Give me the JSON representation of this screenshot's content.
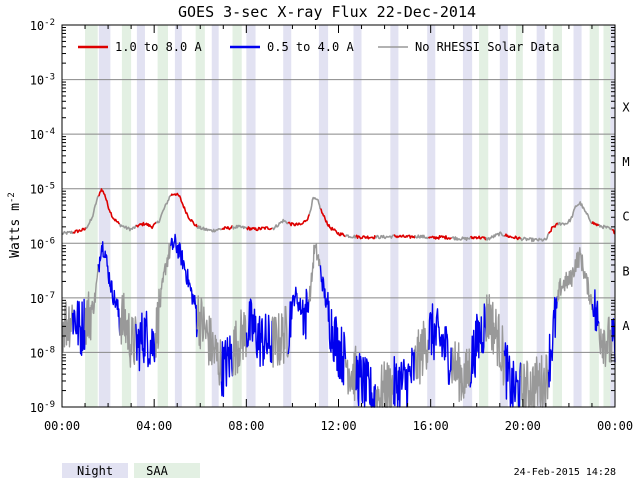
{
  "chart_data": {
    "type": "line",
    "title": "GOES 3-sec X-ray Flux   22-Dec-2014",
    "ylabel": "Watts m",
    "ylabel_sup": "-2",
    "yscale": "log",
    "ylim": [
      1e-09,
      0.01
    ],
    "xlim": [
      0,
      24
    ],
    "x_unit": "hours UT",
    "grid": "horizontal",
    "legend_position": "top",
    "y_ticks": [
      {
        "value": 1e-09,
        "base": "10",
        "exp": "-9"
      },
      {
        "value": 1e-08,
        "base": "10",
        "exp": "-8"
      },
      {
        "value": 1e-07,
        "base": "10",
        "exp": "-7"
      },
      {
        "value": 1e-06,
        "base": "10",
        "exp": "-6"
      },
      {
        "value": 1e-05,
        "base": "10",
        "exp": "-5"
      },
      {
        "value": 0.0001,
        "base": "10",
        "exp": "-4"
      },
      {
        "value": 0.001,
        "base": "10",
        "exp": "-3"
      },
      {
        "value": 0.01,
        "base": "10",
        "exp": "-2"
      }
    ],
    "x_ticks": [
      {
        "value": 0,
        "label": "00:00"
      },
      {
        "value": 4,
        "label": "04:00"
      },
      {
        "value": 8,
        "label": "08:00"
      },
      {
        "value": 12,
        "label": "12:00"
      },
      {
        "value": 16,
        "label": "16:00"
      },
      {
        "value": 20,
        "label": "20:00"
      },
      {
        "value": 24,
        "label": "00:00"
      }
    ],
    "class_labels": [
      {
        "label": "X",
        "value": 0.0001
      },
      {
        "label": "M",
        "value": 1e-05
      },
      {
        "label": "C",
        "value": 1e-06
      },
      {
        "label": "B",
        "value": 1e-07
      },
      {
        "label": "A",
        "value": 1e-08
      }
    ],
    "legend": [
      {
        "label": "1.0 to 8.0 A",
        "color": "#dd0000"
      },
      {
        "label": "0.5 to 4.0 A",
        "color": "#0000ee"
      },
      {
        "label": "No RHESSI Solar Data",
        "color": "#999999"
      }
    ],
    "shade_legend": [
      {
        "label": "Night",
        "color": "#e2e2f2"
      },
      {
        "label": "SAA",
        "color": "#e3f0e3"
      }
    ],
    "night_intervals": [
      [
        1.6,
        2.1
      ],
      [
        3.25,
        3.6
      ],
      [
        4.9,
        5.2
      ],
      [
        6.5,
        6.8
      ],
      [
        8.0,
        8.4
      ],
      [
        9.6,
        9.95
      ],
      [
        11.15,
        11.55
      ],
      [
        12.65,
        13.0
      ],
      [
        14.25,
        14.6
      ],
      [
        15.85,
        16.2
      ],
      [
        17.4,
        17.8
      ],
      [
        19.0,
        19.35
      ],
      [
        20.6,
        20.95
      ],
      [
        22.2,
        22.55
      ],
      [
        23.8,
        24.0
      ]
    ],
    "saa_intervals": [
      [
        1.0,
        1.55
      ],
      [
        2.6,
        3.0
      ],
      [
        4.15,
        4.6
      ],
      [
        5.8,
        6.2
      ],
      [
        7.4,
        7.8
      ],
      [
        18.1,
        18.5
      ],
      [
        19.7,
        20.0
      ],
      [
        21.3,
        21.7
      ],
      [
        22.9,
        23.3
      ],
      [
        23.5,
        23.8
      ]
    ],
    "no_rhessi_intervals": [
      [
        0,
        0.45
      ],
      [
        1.0,
        1.55
      ],
      [
        2.5,
        3.2
      ],
      [
        4.05,
        4.7
      ],
      [
        5.85,
        6.9
      ],
      [
        7.4,
        8.0
      ],
      [
        9.1,
        9.8
      ],
      [
        10.7,
        11.2
      ],
      [
        12.3,
        12.75
      ],
      [
        13.6,
        14.4
      ],
      [
        15.3,
        15.9
      ],
      [
        16.9,
        17.7
      ],
      [
        18.4,
        19.2
      ],
      [
        19.9,
        21.1
      ],
      [
        21.5,
        23.0
      ],
      [
        23.3,
        23.85
      ]
    ],
    "series": [
      {
        "name": "1.0 to 8.0 A",
        "color": "#dd0000",
        "x": [
          0,
          0.5,
          1.0,
          1.3,
          1.5,
          1.7,
          1.85,
          2.0,
          2.2,
          2.5,
          2.8,
          3.0,
          3.3,
          3.6,
          3.9,
          4.2,
          4.4,
          4.7,
          4.9,
          5.1,
          5.3,
          5.5,
          5.8,
          6.0,
          6.2,
          6.5,
          6.8,
          7.2,
          7.6,
          8.0,
          8.4,
          8.8,
          9.2,
          9.6,
          10.0,
          10.4,
          10.7,
          10.9,
          11.1,
          11.3,
          11.6,
          12.0,
          12.5,
          13.0,
          13.5,
          14.0,
          14.5,
          15.0,
          15.5,
          16.0,
          16.5,
          17.0,
          17.5,
          18.0,
          18.5,
          19.0,
          19.5,
          20.0,
          20.5,
          21.0,
          21.3,
          21.6,
          21.9,
          22.1,
          22.3,
          22.5,
          22.7,
          23.0,
          23.3,
          23.7,
          24.0
        ],
        "y": [
          1.5e-06,
          1.6e-06,
          1.8e-06,
          2.8e-06,
          6e-06,
          9.8e-06,
          8e-06,
          4.8e-06,
          3e-06,
          2.2e-06,
          1.9e-06,
          1.8e-06,
          2.1e-06,
          2.3e-06,
          2e-06,
          2.5e-06,
          4e-06,
          7.5e-06,
          8.2e-06,
          7.2e-06,
          4.5e-06,
          3e-06,
          2.1e-06,
          1.9e-06,
          1.8e-06,
          1.7e-06,
          1.8e-06,
          1.9e-06,
          2e-06,
          1.9e-06,
          1.8e-06,
          1.9e-06,
          1.9e-06,
          2.6e-06,
          2.2e-06,
          2.2e-06,
          3e-06,
          6.6e-06,
          6e-06,
          3.5e-06,
          2e-06,
          1.5e-06,
          1.35e-06,
          1.3e-06,
          1.3e-06,
          1.3e-06,
          1.35e-06,
          1.3e-06,
          1.35e-06,
          1.25e-06,
          1.3e-06,
          1.25e-06,
          1.2e-06,
          1.3e-06,
          1.2e-06,
          1.5e-06,
          1.3e-06,
          1.2e-06,
          1.15e-06,
          1.15e-06,
          2e-06,
          2.3e-06,
          2.3e-06,
          2.8e-06,
          4.8e-06,
          5.5e-06,
          3.8e-06,
          2.4e-06,
          2.1e-06,
          1.9e-06,
          1.6e-06
        ]
      },
      {
        "name": "0.5 to 4.0 A",
        "color": "#0000ee",
        "x": [
          0,
          0.3,
          0.5,
          0.8,
          1.0,
          1.2,
          1.4,
          1.55,
          1.7,
          1.85,
          2.0,
          2.2,
          2.5,
          2.8,
          3.0,
          3.3,
          3.6,
          3.9,
          4.1,
          4.3,
          4.5,
          4.7,
          4.9,
          5.1,
          5.3,
          5.6,
          5.9,
          6.2,
          6.6,
          7.0,
          7.4,
          7.8,
          8.2,
          8.6,
          9.0,
          9.4,
          9.8,
          10.1,
          10.4,
          10.6,
          10.8,
          10.95,
          11.1,
          11.3,
          11.6,
          12.0,
          12.5,
          13.0,
          13.5,
          14.0,
          14.5,
          15.0,
          15.5,
          16.0,
          16.5,
          17.0,
          17.5,
          18.0,
          18.5,
          19.0,
          19.5,
          20.0,
          20.5,
          21.0,
          21.3,
          21.6,
          21.9,
          22.1,
          22.3,
          22.5,
          22.7,
          23.0,
          23.3,
          23.7,
          24.0
        ],
        "y": [
          3e-08,
          4e-08,
          5e-08,
          2.5e-08,
          4e-08,
          5e-08,
          8e-08,
          2.5e-07,
          9.5e-07,
          8e-07,
          3e-07,
          1.2e-07,
          5e-08,
          3e-08,
          1.5e-08,
          1.4e-08,
          2.2e-08,
          1.4e-08,
          2.5e-08,
          1e-07,
          4e-07,
          8e-07,
          1e-06,
          7e-07,
          4e-07,
          1.3e-07,
          5e-08,
          2.5e-08,
          1e-08,
          5e-09,
          1e-08,
          2e-08,
          3e-08,
          1.7e-08,
          1.5e-08,
          1.6e-08,
          2.5e-08,
          1.2e-07,
          6e-08,
          5e-08,
          1.5e-07,
          8e-07,
          6e-07,
          2e-07,
          4e-08,
          1.2e-08,
          5e-09,
          3e-09,
          1.5e-09,
          2e-09,
          2.5e-09,
          3e-09,
          8e-09,
          2.5e-08,
          1.5e-08,
          6e-09,
          3e-09,
          1.5e-08,
          5e-08,
          1.5e-08,
          2e-09,
          2e-09,
          2.5e-09,
          3e-09,
          2e-08,
          1.5e-07,
          2e-07,
          2.2e-07,
          4.5e-07,
          6e-07,
          2.5e-07,
          8e-08,
          3e-08,
          1.5e-08,
          1.2e-08
        ]
      }
    ]
  },
  "footer": {
    "legend_night": "Night",
    "legend_saa": "SAA",
    "timestamp": "24-Feb-2015 14:28"
  }
}
